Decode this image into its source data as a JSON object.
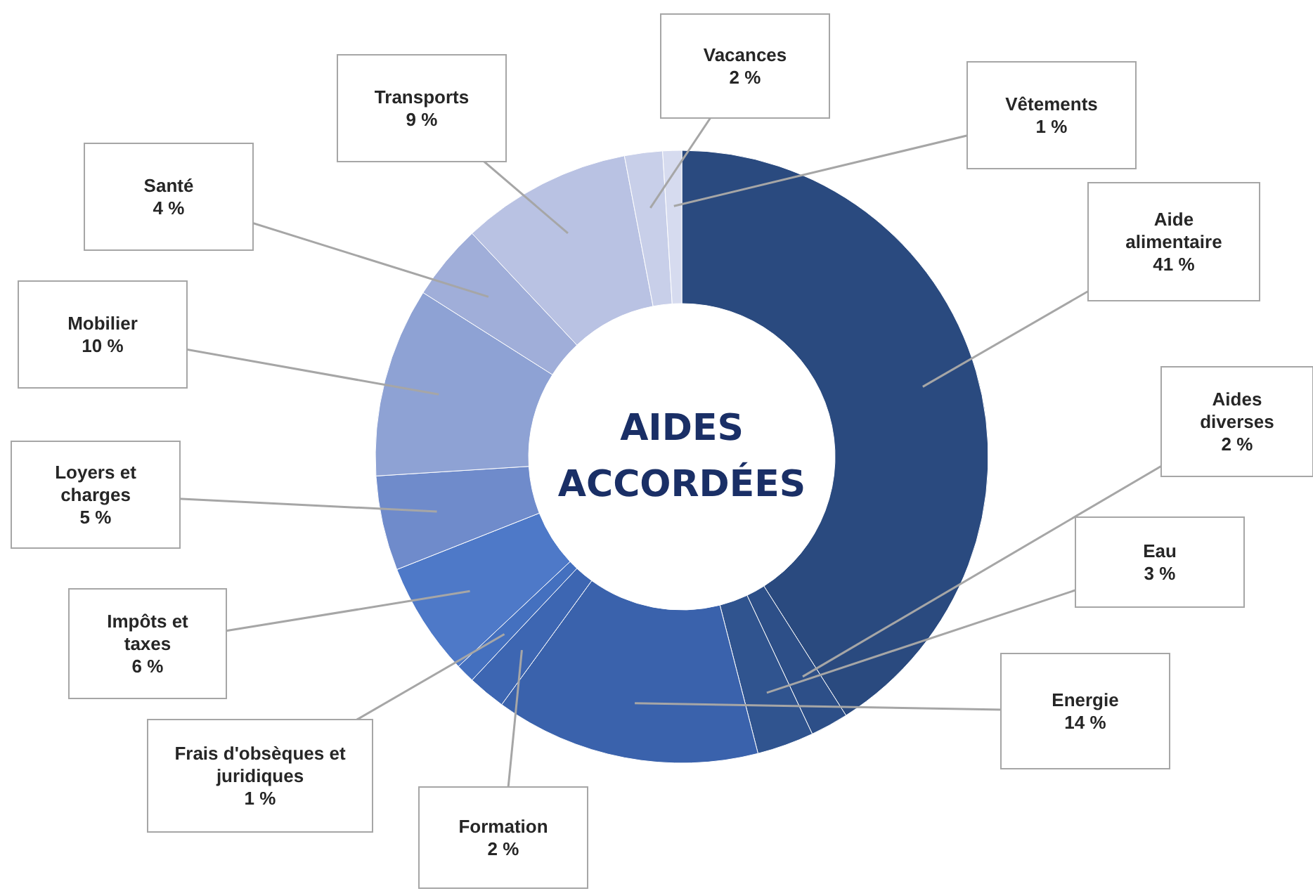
{
  "chart_data": {
    "type": "donut",
    "title": "AIDES ACCORDÉES",
    "categories": [
      "Aide alimentaire",
      "Aides diverses",
      "Eau",
      "Energie",
      "Formation",
      "Frais d'obsèques et juridiques",
      "Impôts et taxes",
      "Loyers et charges",
      "Mobilier",
      "Santé",
      "Transports",
      "Vacances",
      "Vêtements"
    ],
    "values": [
      41,
      2,
      3,
      14,
      2,
      1,
      6,
      5,
      10,
      4,
      9,
      2,
      1
    ],
    "value_labels": [
      "41 %",
      "2 %",
      "3 %",
      "14 %",
      "2 %",
      "1 %",
      "6 %",
      "5 %",
      "10 %",
      "4 %",
      "9 %",
      "2 %",
      "1 %"
    ],
    "colors": [
      "#2a4a7f",
      "#2d4f88",
      "#30548f",
      "#3a62ac",
      "#3d66b2",
      "#4470bf",
      "#4e79c8",
      "#6f8bcb",
      "#8ea2d4",
      "#a0aed9",
      "#b9c2e3",
      "#c8cfe9",
      "#d6dbef"
    ]
  }
}
